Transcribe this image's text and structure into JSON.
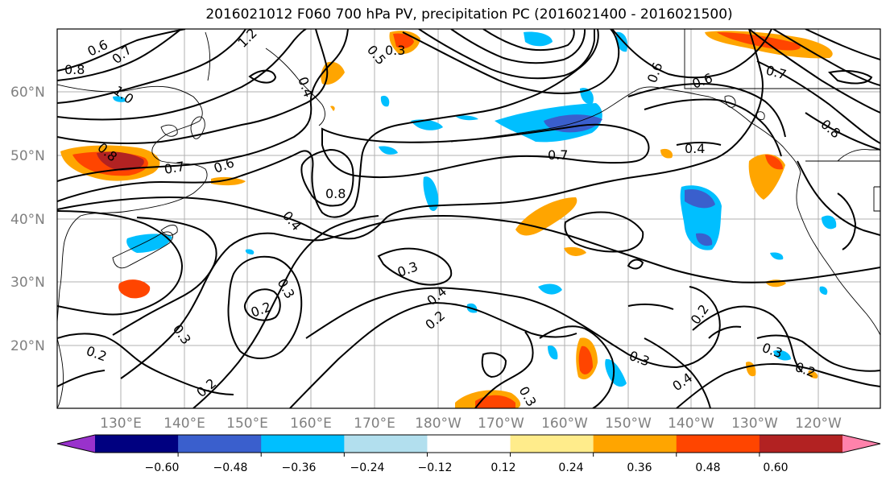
{
  "title": "2016021012 F060 700 hPa PV, precipitation PC (2016021400 - 2016021500)",
  "lat_labels": [
    "60°N",
    "50°N",
    "40°N",
    "30°N",
    "20°N"
  ],
  "lon_labels": [
    "130°E",
    "140°E",
    "150°E",
    "160°E",
    "170°E",
    "180°W",
    "170°W",
    "160°W",
    "150°W",
    "140°W",
    "130°W",
    "120°W"
  ],
  "colorbar": {
    "ticks": [
      "−0.60",
      "−0.48",
      "−0.36",
      "−0.24",
      "−0.12",
      "0.12",
      "0.24",
      "0.36",
      "0.48",
      "0.60"
    ],
    "colors": [
      "#9932cc",
      "#000080",
      "#3a5fcd",
      "#00bfff",
      "#b2dfee",
      "#ffffff",
      "#ffec8b",
      "#ffa500",
      "#ff4500",
      "#b22222",
      "#ff82ab"
    ]
  },
  "contour_labels": [
    "0.6",
    "0.7",
    "0.8",
    "1.0",
    "1.2",
    "0.4",
    "0.5",
    "0.3",
    "0.7",
    "0.8",
    "0.6",
    "0.8",
    "0.7",
    "0.4",
    "0.3",
    "0.2",
    "0.3",
    "0.2",
    "0.3",
    "0.2",
    "0.4",
    "0.2",
    "0.3",
    "0.4",
    "0.3",
    "0.2",
    "0.2",
    "0.7",
    "0.6",
    "0.8",
    "0.4",
    "0.6",
    "0.3"
  ]
}
